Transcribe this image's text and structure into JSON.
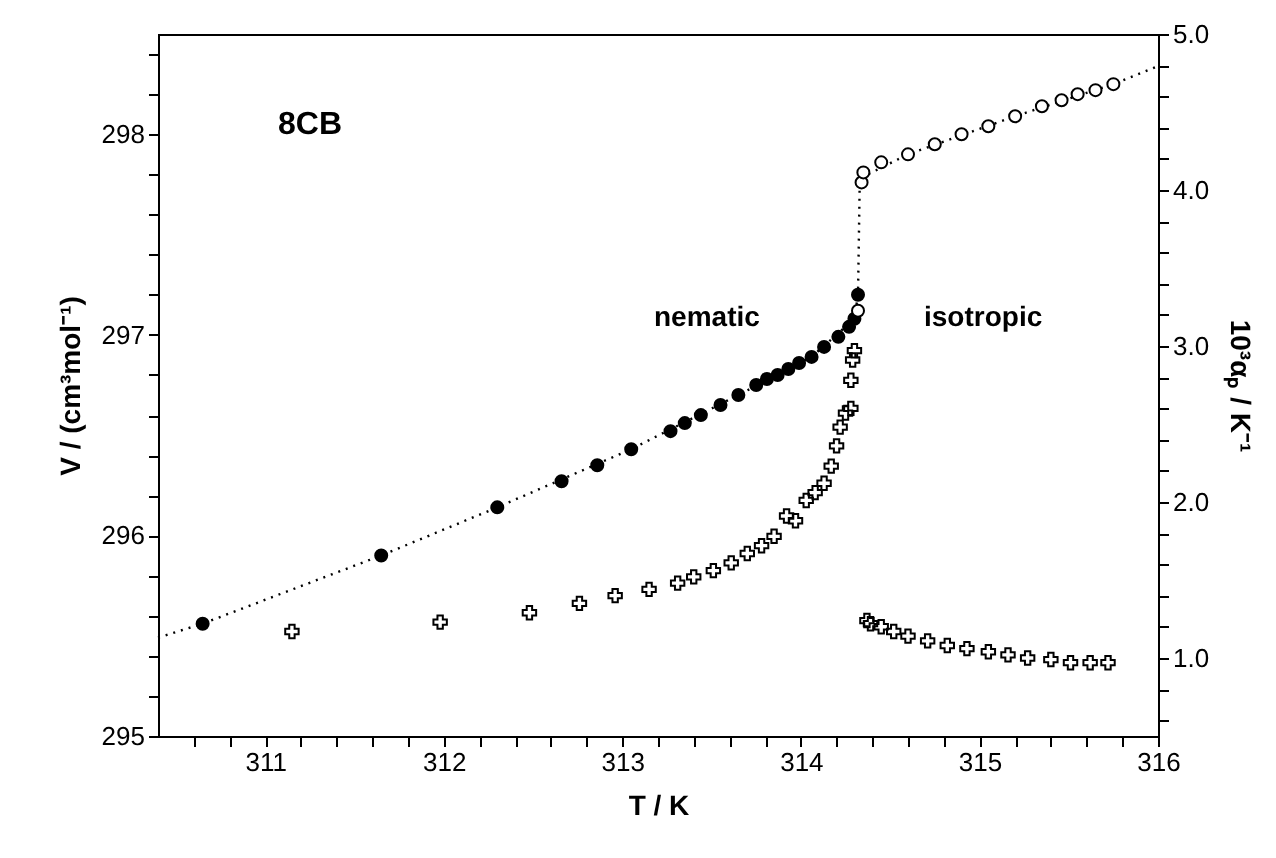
{
  "chart_data": {
    "type": "scatter",
    "xlabel": "T / K",
    "ylabel": "V / (cm³mol⁻¹)",
    "y2label": "10³αₚ / K⁻¹",
    "annotations": [
      "8CB",
      "nematic",
      "isotropic"
    ],
    "xlim": [
      310.4,
      316
    ],
    "ylim": [
      295,
      298.5
    ],
    "y2lim": [
      0.5,
      5.0
    ],
    "xticks": [
      {
        "value": 310.6,
        "label": null
      },
      {
        "value": 310.8,
        "label": null
      },
      311,
      {
        "value": 311.2,
        "label": null
      },
      {
        "value": 311.4,
        "label": null
      },
      {
        "value": 311.6,
        "label": null
      },
      {
        "value": 311.8,
        "label": null
      },
      312,
      {
        "value": 312.2,
        "label": null
      },
      {
        "value": 312.4,
        "label": null
      },
      {
        "value": 312.6,
        "label": null
      },
      {
        "value": 312.8,
        "label": null
      },
      313,
      {
        "value": 313.2,
        "label": null
      },
      {
        "value": 313.4,
        "label": null
      },
      {
        "value": 313.6,
        "label": null
      },
      {
        "value": 313.8,
        "label": null
      },
      314,
      {
        "value": 314.2,
        "label": null
      },
      {
        "value": 314.4,
        "label": null
      },
      {
        "value": 314.6,
        "label": null
      },
      {
        "value": 314.8,
        "label": null
      },
      315,
      {
        "value": 315.2,
        "label": null
      },
      {
        "value": 315.4,
        "label": null
      },
      {
        "value": 315.6,
        "label": null
      },
      {
        "value": 315.8,
        "label": null
      },
      316
    ],
    "yticks": [
      295,
      {
        "value": 295.2,
        "label": null
      },
      {
        "value": 295.4,
        "label": null
      },
      {
        "value": 295.6,
        "label": null
      },
      {
        "value": 295.8,
        "label": null
      },
      296,
      {
        "value": 296.2,
        "label": null
      },
      {
        "value": 296.4,
        "label": null
      },
      {
        "value": 296.6,
        "label": null
      },
      {
        "value": 296.8,
        "label": null
      },
      297,
      {
        "value": 297.2,
        "label": null
      },
      {
        "value": 297.4,
        "label": null
      },
      {
        "value": 297.6,
        "label": null
      },
      {
        "value": 297.8,
        "label": null
      },
      298,
      {
        "value": 298.2,
        "label": null
      },
      {
        "value": 298.4,
        "label": null
      }
    ],
    "y2ticks": [
      {
        "value": 0.6,
        "label": null
      },
      {
        "value": 0.8,
        "label": null
      },
      {
        "value": 1,
        "label": "1.0"
      },
      {
        "value": 1.2,
        "label": null
      },
      {
        "value": 1.4,
        "label": null
      },
      {
        "value": 1.6,
        "label": null
      },
      {
        "value": 1.8,
        "label": null
      },
      {
        "value": 2,
        "label": "2.0"
      },
      {
        "value": 2.2,
        "label": null
      },
      {
        "value": 2.4,
        "label": null
      },
      {
        "value": 2.6,
        "label": null
      },
      {
        "value": 2.8,
        "label": null
      },
      {
        "value": 3,
        "label": "3.0"
      },
      {
        "value": 3.2,
        "label": null
      },
      {
        "value": 3.4,
        "label": null
      },
      {
        "value": 3.6,
        "label": null
      },
      {
        "value": 3.8,
        "label": null
      },
      {
        "value": 4,
        "label": "4.0"
      },
      {
        "value": 4.2,
        "label": null
      },
      {
        "value": 4.4,
        "label": null
      },
      {
        "value": 4.6,
        "label": null
      },
      {
        "value": 4.8,
        "label": null
      },
      {
        "value": 5,
        "label": "5.0"
      }
    ],
    "grid": false,
    "series": [
      {
        "type": "line",
        "line_style": "dotted",
        "marker": "none",
        "color": "#000000",
        "x": [
          310.4,
          310.65,
          311.65,
          312.3,
          313.05,
          313.65,
          314.06,
          314.3,
          314.32,
          314.33,
          314.6,
          315.2,
          315.75,
          316.0
        ],
        "values": [
          295.49,
          295.56,
          295.9,
          296.14,
          296.43,
          296.7,
          296.89,
          297.08,
          297.2,
          297.78,
          297.9,
          298.09,
          298.25,
          298.34
        ]
      },
      {
        "marker": "circle",
        "color": "#000000",
        "x": [
          310.65,
          311.65,
          312.3,
          312.66,
          312.86,
          313.05,
          313.27,
          313.35,
          313.44,
          313.55,
          313.65,
          313.75,
          313.81,
          313.87,
          313.93,
          313.99,
          314.06,
          314.13,
          314.21,
          314.27,
          314.3,
          314.32
        ],
        "values": [
          295.56,
          295.9,
          296.14,
          296.27,
          296.35,
          296.43,
          296.52,
          296.56,
          296.6,
          296.65,
          296.7,
          296.75,
          296.78,
          296.8,
          296.83,
          296.86,
          296.89,
          296.94,
          296.99,
          297.04,
          297.08,
          297.2
        ]
      },
      {
        "marker": "circle",
        "color": "#ffffff",
        "x": [
          314.32,
          314.34,
          314.35,
          314.45,
          314.6,
          314.75,
          314.9,
          315.05,
          315.2,
          315.35,
          315.46,
          315.55,
          315.65,
          315.75
        ],
        "values": [
          297.12,
          297.76,
          297.81,
          297.86,
          297.9,
          297.95,
          298.0,
          298.04,
          298.09,
          298.14,
          298.17,
          298.2,
          298.22,
          298.25
        ]
      },
      {
        "marker": "cross",
        "axis": "y2",
        "color": "#000000",
        "x": [
          311.15,
          311.98,
          312.48,
          312.76,
          312.96,
          313.15,
          313.31,
          313.4,
          313.51,
          313.61,
          313.7,
          313.78,
          313.85,
          313.92,
          313.97,
          314.03,
          314.08,
          314.13,
          314.17,
          314.2,
          314.22,
          314.25,
          314.28,
          314.28,
          314.29,
          314.3,
          314.37,
          314.39,
          314.45,
          314.52,
          314.6,
          314.71,
          314.82,
          314.93,
          315.05,
          315.16,
          315.27,
          315.4,
          315.51,
          315.62,
          315.72
        ],
        "values": [
          1.17,
          1.23,
          1.29,
          1.35,
          1.4,
          1.44,
          1.48,
          1.52,
          1.56,
          1.61,
          1.67,
          1.72,
          1.78,
          1.91,
          1.88,
          2.01,
          2.06,
          2.12,
          2.23,
          2.36,
          2.48,
          2.57,
          2.6,
          2.78,
          2.91,
          2.97,
          1.24,
          1.22,
          1.2,
          1.17,
          1.14,
          1.11,
          1.08,
          1.06,
          1.04,
          1.02,
          1.0,
          0.99,
          0.97,
          0.97,
          0.97
        ]
      }
    ]
  }
}
